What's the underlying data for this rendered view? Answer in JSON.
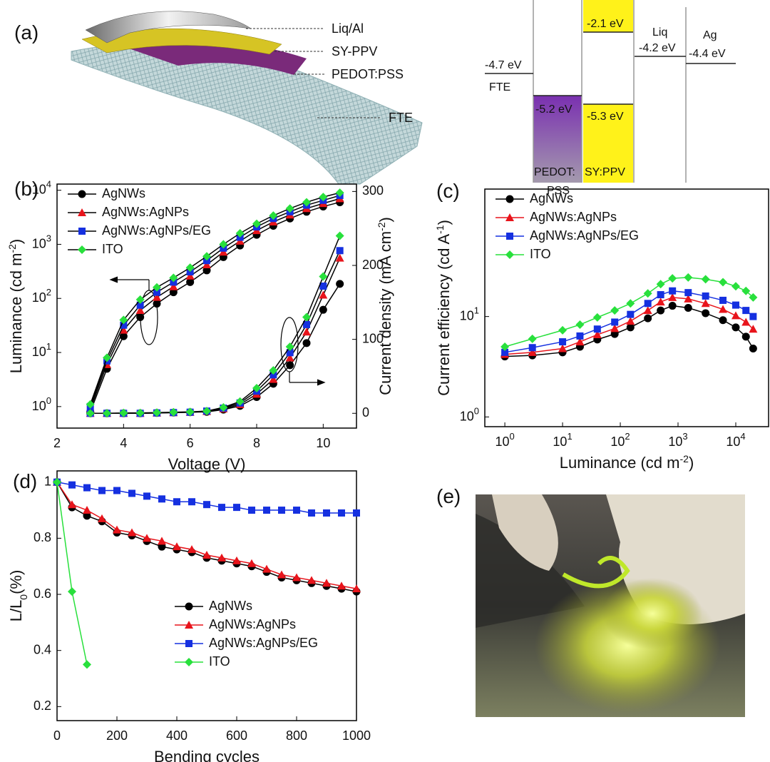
{
  "figure": {
    "panel_labels": [
      "(a)",
      "(b)",
      "(c)",
      "(d)",
      "(e)"
    ]
  },
  "device": {
    "layers": [
      "Liq/Al",
      "SY-PPV",
      "PEDOT:PSS",
      "FTE"
    ]
  },
  "energy_diagram": {
    "labels": [
      "-4.7 eV",
      "FTE",
      "-5.2 eV",
      "PEDOT:",
      "PSS",
      "-2.1 eV",
      "-5.3 eV",
      "SY:PPV",
      "Liq",
      "-4.2 eV",
      "Ag",
      "-4.4 eV"
    ]
  },
  "chart_data": [
    {
      "type": "line",
      "xlabel": [
        {
          "t": "Voltage (V)"
        }
      ],
      "ylabel": [
        {
          "t": "Luminance (cd m"
        },
        {
          "t": "-2",
          "sup": true
        },
        {
          "t": ")"
        }
      ],
      "y2label": [
        {
          "t": "Current density (mA cm"
        },
        {
          "t": "-2",
          "sup": true
        },
        {
          "t": ")"
        }
      ],
      "xlim": [
        2,
        11
      ],
      "xticks": [
        2,
        4,
        6,
        8,
        10
      ],
      "ylog": true,
      "ylim": [
        0.4,
        13000
      ],
      "yticks": [
        {
          "value": 1,
          "label": "10",
          "exp": "0"
        },
        {
          "value": 10,
          "label": "10",
          "exp": "1"
        },
        {
          "value": 100,
          "label": "10",
          "exp": "2"
        },
        {
          "value": 1000,
          "label": "10",
          "exp": "3"
        },
        {
          "value": 10000,
          "label": "10",
          "exp": "4"
        }
      ],
      "y2lim": [
        -20,
        310
      ],
      "y2ticks": [
        0,
        100,
        200,
        300
      ],
      "legend": "upper left",
      "x": [
        3,
        3.5,
        4,
        4.5,
        5,
        5.5,
        6,
        6.5,
        7,
        7.5,
        8,
        8.5,
        9,
        9.5,
        10,
        10.5
      ],
      "series": [
        {
          "name": "AgNWs",
          "color": "#000000",
          "marker": "circle",
          "values": [
            0.8,
            5,
            20,
            45,
            80,
            130,
            200,
            330,
            580,
            950,
            1500,
            2200,
            3000,
            4000,
            5000,
            6000
          ]
        },
        {
          "name": "AgNWs:AgNPs",
          "color": "#e8141b",
          "marker": "triangle",
          "values": [
            0.9,
            6,
            26,
            60,
            105,
            165,
            260,
            420,
            720,
            1150,
            1800,
            2600,
            3500,
            4600,
            5700,
            7000
          ]
        },
        {
          "name": "AgNWs:AgNPs/EG",
          "color": "#1530e0",
          "marker": "square",
          "values": [
            1,
            7,
            32,
            75,
            130,
            200,
            310,
            500,
            850,
            1350,
            2100,
            3000,
            4000,
            5300,
            6500,
            8000
          ]
        },
        {
          "name": "ITO",
          "color": "#28e03c",
          "marker": "diamond",
          "values": [
            1.1,
            8,
            40,
            95,
            160,
            240,
            370,
            600,
            1000,
            1600,
            2400,
            3400,
            4600,
            6000,
            7500,
            9000
          ]
        },
        {
          "axis": "y2",
          "color": "#000000",
          "marker": "circle",
          "values": [
            0,
            0,
            0,
            0,
            0.5,
            1,
            1.5,
            2,
            5,
            10,
            22,
            40,
            65,
            95,
            140,
            175
          ]
        },
        {
          "axis": "y2",
          "color": "#e8141b",
          "marker": "triangle",
          "values": [
            0,
            0,
            0,
            0,
            0.5,
            1,
            1.5,
            2.5,
            6,
            12,
            26,
            46,
            75,
            110,
            160,
            210
          ]
        },
        {
          "axis": "y2",
          "color": "#1530e0",
          "marker": "square",
          "values": [
            0,
            0,
            0,
            0,
            0.5,
            1,
            1.5,
            3,
            7,
            14,
            30,
            52,
            82,
            120,
            172,
            220
          ]
        },
        {
          "axis": "y2",
          "color": "#28e03c",
          "marker": "diamond",
          "values": [
            0,
            0,
            0.5,
            0.5,
            1,
            1.5,
            2,
            3,
            8,
            16,
            34,
            58,
            90,
            130,
            185,
            240
          ]
        }
      ]
    },
    {
      "type": "line",
      "xlabel": [
        {
          "t": "Luminance (cd m"
        },
        {
          "t": "-2",
          "sup": true
        },
        {
          "t": ")"
        }
      ],
      "ylabel": [
        {
          "t": "Current efficiency (cd A"
        },
        {
          "t": "-1",
          "sup": true
        },
        {
          "t": ")"
        }
      ],
      "xlog": true,
      "xlim": [
        0.45,
        37000
      ],
      "xticks": [
        {
          "value": 1,
          "label": "10",
          "exp": "0"
        },
        {
          "value": 10,
          "label": "10",
          "exp": "1"
        },
        {
          "value": 100,
          "label": "10",
          "exp": "2"
        },
        {
          "value": 1000,
          "label": "10",
          "exp": "3"
        },
        {
          "value": 10000,
          "label": "10",
          "exp": "4"
        }
      ],
      "ylog": true,
      "ylim": [
        0.8,
        186
      ],
      "yticks": [
        {
          "value": 1,
          "label": "10",
          "exp": "0"
        },
        {
          "value": 10,
          "label": "10",
          "exp": "1"
        }
      ],
      "legend": "upper left",
      "x": [
        1,
        3,
        10,
        20,
        40,
        80,
        150,
        300,
        500,
        800,
        1500,
        3000,
        6000,
        10000,
        15000,
        20000
      ],
      "series": [
        {
          "name": "AgNWs",
          "color": "#000000",
          "marker": "circle",
          "values": [
            4.0,
            4.1,
            4.4,
            5.0,
            5.9,
            6.7,
            7.8,
            9.6,
            11.5,
            12.8,
            12.2,
            10.8,
            9.2,
            7.8,
            6.3,
            4.8
          ]
        },
        {
          "name": "AgNWs:AgNPs",
          "color": "#e8141b",
          "marker": "triangle",
          "values": [
            4.2,
            4.4,
            4.8,
            5.6,
            6.6,
            7.6,
            9,
            11.5,
            14,
            15.5,
            15,
            13.5,
            11.8,
            10.2,
            8.8,
            7.5
          ]
        },
        {
          "name": "AgNWs:AgNPs/EG",
          "color": "#1530e0",
          "marker": "square",
          "values": [
            4.4,
            4.9,
            5.6,
            6.4,
            7.5,
            8.8,
            10.5,
            13.5,
            16.5,
            18,
            17.3,
            16,
            14.5,
            13,
            11.5,
            10
          ]
        },
        {
          "name": "ITO",
          "color": "#28e03c",
          "marker": "diamond",
          "values": [
            5,
            6,
            7.3,
            8.3,
            9.8,
            11.5,
            13.5,
            17,
            21,
            24,
            24.5,
            23.5,
            22,
            20,
            18,
            15.5
          ]
        }
      ]
    },
    {
      "type": "line",
      "xlabel": [
        {
          "t": "Bending cycles"
        }
      ],
      "ylabel": [
        {
          "t": "L/L"
        },
        {
          "t": "0",
          "sub": true
        },
        {
          "t": "(%)"
        }
      ],
      "xlim": [
        0,
        1000
      ],
      "xticks": [
        0,
        200,
        400,
        600,
        800,
        1000
      ],
      "ylim": [
        0.15,
        1.04
      ],
      "yticks": [
        0.2,
        0.4,
        0.6,
        0.8,
        1.0
      ],
      "legend": "lower center",
      "series": [
        {
          "name": "AgNWs",
          "color": "#000000",
          "marker": "circle",
          "x": [
            0,
            50,
            100,
            150,
            200,
            250,
            300,
            350,
            400,
            450,
            500,
            550,
            600,
            650,
            700,
            750,
            800,
            850,
            900,
            950,
            1000
          ],
          "values": [
            1,
            0.91,
            0.88,
            0.86,
            0.82,
            0.81,
            0.79,
            0.77,
            0.76,
            0.75,
            0.73,
            0.72,
            0.71,
            0.7,
            0.68,
            0.66,
            0.65,
            0.64,
            0.63,
            0.62,
            0.61
          ]
        },
        {
          "name": "AgNWs:AgNPs",
          "color": "#e8141b",
          "marker": "triangle",
          "x": [
            0,
            50,
            100,
            150,
            200,
            250,
            300,
            350,
            400,
            450,
            500,
            550,
            600,
            650,
            700,
            750,
            800,
            850,
            900,
            950,
            1000
          ],
          "values": [
            1,
            0.92,
            0.9,
            0.87,
            0.83,
            0.82,
            0.8,
            0.79,
            0.77,
            0.76,
            0.74,
            0.73,
            0.72,
            0.71,
            0.69,
            0.67,
            0.66,
            0.65,
            0.64,
            0.63,
            0.62
          ]
        },
        {
          "name": "AgNWs:AgNPs/EG",
          "color": "#1530e0",
          "marker": "square",
          "x": [
            0,
            50,
            100,
            150,
            200,
            250,
            300,
            350,
            400,
            450,
            500,
            550,
            600,
            650,
            700,
            750,
            800,
            850,
            900,
            950,
            1000
          ],
          "values": [
            1,
            0.99,
            0.98,
            0.97,
            0.97,
            0.96,
            0.95,
            0.94,
            0.93,
            0.93,
            0.92,
            0.91,
            0.91,
            0.9,
            0.9,
            0.9,
            0.9,
            0.89,
            0.89,
            0.89,
            0.89
          ]
        },
        {
          "name": "ITO",
          "color": "#28e03c",
          "marker": "diamond",
          "x": [
            0,
            50,
            100
          ],
          "values": [
            1,
            0.61,
            0.35
          ]
        }
      ]
    }
  ]
}
